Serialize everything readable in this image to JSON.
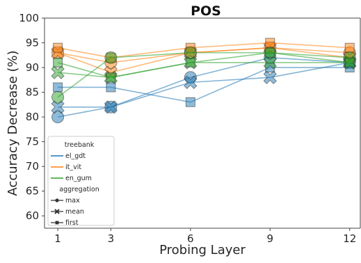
{
  "chart_data": {
    "type": "line",
    "title": "POS",
    "xlabel": "Probing Layer",
    "ylabel": "Accuracy Decrease (%)",
    "x": [
      1,
      3,
      6,
      9,
      12
    ],
    "x_ticks": [
      "1",
      "3",
      "6",
      "9",
      "12"
    ],
    "y_ticks": [
      "60",
      "65",
      "70",
      "75",
      "80",
      "85",
      "90",
      "95",
      "100"
    ],
    "xlim": [
      0.5,
      12.4
    ],
    "ylim": [
      57.5,
      100
    ],
    "grid": false,
    "legend_position": "bottom-left",
    "legend": {
      "hue_title": "treebank",
      "hue_entries": [
        {
          "label": "el_gdt",
          "color": "#1f77b4"
        },
        {
          "label": "it_vit",
          "color": "#ff7f0e"
        },
        {
          "label": "en_gum",
          "color": "#2ca02c"
        }
      ],
      "style_title": "aggregation",
      "style_entries": [
        {
          "label": "max",
          "marker": "circle"
        },
        {
          "label": "mean",
          "marker": "x"
        },
        {
          "label": "first",
          "marker": "square"
        }
      ]
    },
    "series": [
      {
        "treebank": "el_gdt",
        "aggregation": "max",
        "color": "#1f77b4",
        "values": [
          80,
          82,
          88,
          92,
          91
        ]
      },
      {
        "treebank": "el_gdt",
        "aggregation": "mean",
        "color": "#1f77b4",
        "values": [
          82,
          82,
          87,
          88,
          91
        ]
      },
      {
        "treebank": "el_gdt",
        "aggregation": "first",
        "color": "#1f77b4",
        "values": [
          86,
          86,
          83,
          90,
          90
        ]
      },
      {
        "treebank": "it_vit",
        "aggregation": "max",
        "color": "#ff7f0e",
        "values": [
          93,
          91,
          93,
          94,
          93
        ]
      },
      {
        "treebank": "it_vit",
        "aggregation": "mean",
        "color": "#ff7f0e",
        "values": [
          93,
          89,
          93,
          94,
          92
        ]
      },
      {
        "treebank": "it_vit",
        "aggregation": "first",
        "color": "#ff7f0e",
        "values": [
          94,
          92,
          94,
          95,
          94
        ]
      },
      {
        "treebank": "en_gum",
        "aggregation": "max",
        "color": "#2ca02c",
        "values": [
          84,
          92,
          93,
          93,
          92
        ]
      },
      {
        "treebank": "en_gum",
        "aggregation": "mean",
        "color": "#2ca02c",
        "values": [
          89,
          88,
          91,
          91,
          91
        ]
      },
      {
        "treebank": "en_gum",
        "aggregation": "first",
        "color": "#2ca02c",
        "values": [
          91,
          88,
          91,
          93,
          91
        ]
      }
    ]
  }
}
